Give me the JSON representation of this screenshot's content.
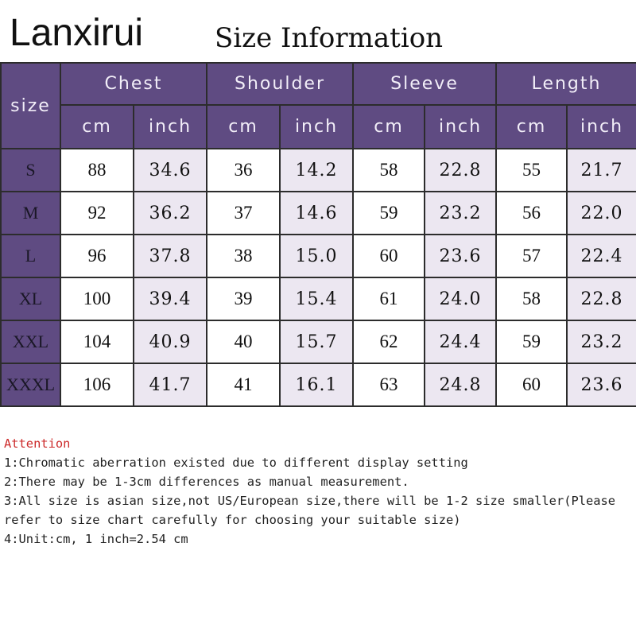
{
  "brand": "Lanxirui",
  "title": "Size Information",
  "table": {
    "size_header": "size",
    "groups": [
      "Chest",
      "Shoulder",
      "Sleeve",
      "Length"
    ],
    "units": [
      "cm",
      "inch",
      "cm",
      "inch",
      "cm",
      "inch",
      "cm",
      "inch"
    ],
    "rows": [
      {
        "size": "S",
        "values": [
          "88",
          "34.6",
          "36",
          "14.2",
          "58",
          "22.8",
          "55",
          "21.7"
        ]
      },
      {
        "size": "M",
        "values": [
          "92",
          "36.2",
          "37",
          "14.6",
          "59",
          "23.2",
          "56",
          "22.0"
        ]
      },
      {
        "size": "L",
        "values": [
          "96",
          "37.8",
          "38",
          "15.0",
          "60",
          "23.6",
          "57",
          "22.4"
        ]
      },
      {
        "size": "XL",
        "values": [
          "100",
          "39.4",
          "39",
          "15.4",
          "61",
          "24.0",
          "58",
          "22.8"
        ]
      },
      {
        "size": "XXL",
        "values": [
          "104",
          "40.9",
          "40",
          "15.7",
          "62",
          "24.4",
          "59",
          "23.2"
        ]
      },
      {
        "size": "XXXL",
        "values": [
          "106",
          "41.7",
          "41",
          "16.1",
          "63",
          "24.8",
          "60",
          "23.6"
        ]
      }
    ]
  },
  "notes": {
    "attention": "Attention",
    "lines": [
      "1:Chromatic aberration existed due to different display setting",
      "2:There may be 1-3cm differences as manual measurement.",
      "3:All size is asian size,not US/European size,there will be 1-2 size smaller(Please refer to size chart carefully for choosing your suitable size)",
      "4:Unit:cm, 1 inch=2.54 cm"
    ]
  },
  "colors": {
    "header_bg": "#5f4b82",
    "inch_bg": "#ece7f1",
    "attention": "#cc2a2a"
  }
}
